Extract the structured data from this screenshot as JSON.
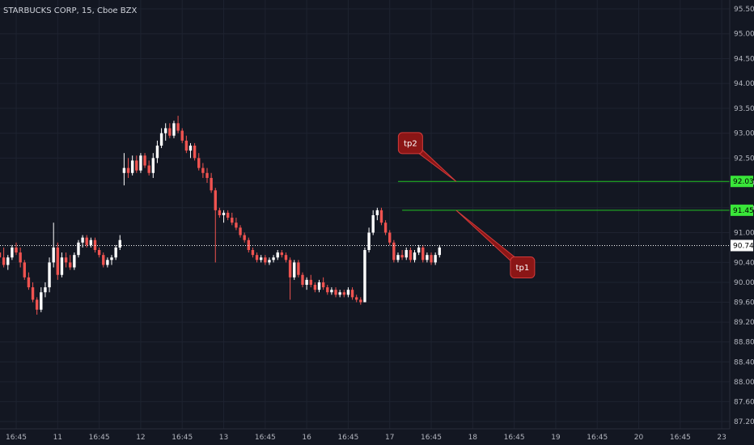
{
  "chart_data": {
    "type": "candlestick",
    "title": "STARBUCKS CORP, 15, Cboe BZX",
    "colors": {
      "up": "#ffffff",
      "down": "#ef5350",
      "background": "#131722",
      "target_line": "#22c322",
      "target_badge": "#39e639",
      "price_line": "#ffffff",
      "callout": "#8b1616",
      "callout_border": "#d33a3a"
    },
    "y_axis": {
      "min": 87.2,
      "max": 95.5,
      "ticks": [
        "95.50",
        "95.00",
        "94.50",
        "94.00",
        "93.50",
        "93.00",
        "92.50",
        "92.00",
        "91.50",
        "91.00",
        "90.40",
        "90.00",
        "89.60",
        "89.20",
        "88.80",
        "88.40",
        "88.00",
        "87.60",
        "87.20"
      ],
      "position": "right"
    },
    "x_axis": {
      "ticks": [
        {
          "label": "16:45",
          "bar": 4
        },
        {
          "label": "11",
          "bar": 14
        },
        {
          "label": "16:45",
          "bar": 24
        },
        {
          "label": "12",
          "bar": 34
        },
        {
          "label": "16:45",
          "bar": 44
        },
        {
          "label": "13",
          "bar": 54
        },
        {
          "label": "16:45",
          "bar": 64
        },
        {
          "label": "16",
          "bar": 74
        },
        {
          "label": "16:45",
          "bar": 84
        },
        {
          "label": "17",
          "bar": 94
        },
        {
          "label": "16:45",
          "bar": 104
        },
        {
          "label": "18",
          "bar": 114
        },
        {
          "label": "16:45",
          "bar": 124
        },
        {
          "label": "19",
          "bar": 134
        },
        {
          "label": "16:45",
          "bar": 144
        },
        {
          "label": "20",
          "bar": 154
        },
        {
          "label": "16:45",
          "bar": 164
        },
        {
          "label": "23",
          "bar": 174
        }
      ]
    },
    "candles": [
      [
        90.6,
        90.8,
        90.45,
        90.5
      ],
      [
        90.5,
        90.7,
        90.3,
        90.35
      ],
      [
        90.35,
        90.55,
        90.25,
        90.5
      ],
      [
        90.5,
        90.75,
        90.45,
        90.7
      ],
      [
        90.7,
        90.8,
        90.55,
        90.6
      ],
      [
        90.6,
        90.7,
        90.3,
        90.4
      ],
      [
        90.4,
        90.45,
        90.05,
        90.1
      ],
      [
        90.1,
        90.2,
        89.85,
        89.9
      ],
      [
        89.9,
        90.0,
        89.6,
        89.65
      ],
      [
        89.65,
        89.7,
        89.35,
        89.45
      ],
      [
        89.45,
        89.9,
        89.4,
        89.8
      ],
      [
        89.8,
        90.0,
        89.7,
        89.9
      ],
      [
        89.9,
        90.5,
        89.8,
        90.4
      ],
      [
        90.4,
        91.2,
        90.3,
        90.7
      ],
      [
        90.7,
        90.8,
        90.05,
        90.15
      ],
      [
        90.15,
        90.6,
        90.1,
        90.5
      ],
      [
        90.5,
        90.6,
        90.3,
        90.4
      ],
      [
        90.4,
        90.55,
        90.25,
        90.3
      ],
      [
        90.3,
        90.6,
        90.25,
        90.55
      ],
      [
        90.55,
        90.85,
        90.5,
        90.8
      ],
      [
        90.8,
        90.95,
        90.7,
        90.9
      ],
      [
        90.9,
        90.95,
        90.7,
        90.75
      ],
      [
        90.75,
        90.9,
        90.7,
        90.85
      ],
      [
        90.85,
        90.9,
        90.6,
        90.65
      ],
      [
        90.65,
        90.7,
        90.5,
        90.55
      ],
      [
        90.55,
        90.6,
        90.3,
        90.35
      ],
      [
        90.35,
        90.5,
        90.3,
        90.45
      ],
      [
        90.45,
        90.55,
        90.35,
        90.5
      ],
      [
        90.5,
        90.75,
        90.45,
        90.7
      ],
      [
        90.7,
        90.95,
        90.65,
        90.85
      ],
      [
        92.2,
        92.6,
        91.95,
        92.3
      ],
      [
        92.3,
        92.5,
        92.1,
        92.2
      ],
      [
        92.2,
        92.55,
        92.15,
        92.45
      ],
      [
        92.45,
        92.55,
        92.2,
        92.25
      ],
      [
        92.25,
        92.6,
        92.2,
        92.55
      ],
      [
        92.55,
        92.6,
        92.3,
        92.35
      ],
      [
        92.35,
        92.45,
        92.15,
        92.2
      ],
      [
        92.2,
        92.6,
        92.1,
        92.5
      ],
      [
        92.5,
        92.85,
        92.4,
        92.75
      ],
      [
        92.75,
        93.1,
        92.7,
        93.0
      ],
      [
        93.0,
        93.2,
        92.85,
        93.1
      ],
      [
        93.1,
        93.2,
        92.9,
        92.95
      ],
      [
        92.95,
        93.25,
        92.9,
        93.2
      ],
      [
        93.2,
        93.35,
        93.0,
        93.05
      ],
      [
        93.05,
        93.1,
        92.8,
        92.85
      ],
      [
        92.85,
        92.95,
        92.6,
        92.65
      ],
      [
        92.65,
        92.8,
        92.5,
        92.75
      ],
      [
        92.75,
        92.8,
        92.45,
        92.5
      ],
      [
        92.5,
        92.6,
        92.25,
        92.3
      ],
      [
        92.3,
        92.4,
        92.1,
        92.2
      ],
      [
        92.2,
        92.3,
        92.0,
        92.1
      ],
      [
        92.1,
        92.2,
        91.8,
        91.85
      ],
      [
        91.85,
        91.9,
        90.4,
        91.45
      ],
      [
        91.45,
        91.5,
        91.3,
        91.35
      ],
      [
        91.35,
        91.45,
        91.2,
        91.4
      ],
      [
        91.4,
        91.45,
        91.25,
        91.3
      ],
      [
        91.3,
        91.4,
        91.15,
        91.2
      ],
      [
        91.2,
        91.3,
        91.05,
        91.1
      ],
      [
        91.1,
        91.15,
        90.9,
        90.95
      ],
      [
        90.95,
        91.0,
        90.8,
        90.85
      ],
      [
        90.85,
        90.9,
        90.6,
        90.65
      ],
      [
        90.65,
        90.7,
        90.5,
        90.55
      ],
      [
        90.55,
        90.6,
        90.4,
        90.45
      ],
      [
        90.45,
        90.55,
        90.4,
        90.5
      ],
      [
        90.5,
        90.55,
        90.35,
        90.4
      ],
      [
        90.4,
        90.5,
        90.35,
        90.45
      ],
      [
        90.45,
        90.55,
        90.4,
        90.5
      ],
      [
        90.5,
        90.65,
        90.45,
        90.6
      ],
      [
        90.6,
        90.65,
        90.5,
        90.55
      ],
      [
        90.55,
        90.6,
        90.4,
        90.45
      ],
      [
        90.45,
        90.5,
        89.65,
        90.1
      ],
      [
        90.1,
        90.45,
        90.05,
        90.4
      ],
      [
        90.4,
        90.45,
        90.1,
        90.15
      ],
      [
        90.15,
        90.2,
        89.9,
        89.95
      ],
      [
        89.95,
        90.1,
        89.85,
        90.05
      ],
      [
        90.05,
        90.15,
        89.9,
        89.95
      ],
      [
        89.95,
        90.0,
        89.8,
        89.85
      ],
      [
        89.85,
        90.05,
        89.8,
        90.0
      ],
      [
        90.0,
        90.1,
        89.85,
        89.9
      ],
      [
        89.9,
        89.95,
        89.75,
        89.8
      ],
      [
        89.8,
        89.9,
        89.75,
        89.85
      ],
      [
        89.85,
        89.9,
        89.7,
        89.75
      ],
      [
        89.75,
        89.85,
        89.7,
        89.8
      ],
      [
        89.8,
        89.85,
        89.7,
        89.75
      ],
      [
        89.75,
        89.9,
        89.7,
        89.85
      ],
      [
        89.85,
        89.9,
        89.65,
        89.7
      ],
      [
        89.7,
        89.75,
        89.6,
        89.65
      ],
      [
        89.65,
        89.7,
        89.55,
        89.6
      ],
      [
        89.6,
        90.7,
        89.6,
        90.65
      ],
      [
        90.65,
        91.1,
        90.6,
        91.0
      ],
      [
        91.0,
        91.45,
        90.95,
        91.35
      ],
      [
        91.35,
        91.5,
        91.25,
        91.45
      ],
      [
        91.45,
        91.5,
        91.15,
        91.2
      ],
      [
        91.2,
        91.25,
        90.95,
        91.0
      ],
      [
        91.0,
        91.05,
        90.75,
        90.8
      ],
      [
        90.8,
        90.85,
        90.4,
        90.45
      ],
      [
        90.45,
        90.6,
        90.4,
        90.55
      ],
      [
        90.55,
        90.65,
        90.45,
        90.5
      ],
      [
        90.5,
        90.7,
        90.45,
        90.65
      ],
      [
        90.65,
        90.7,
        90.4,
        90.45
      ],
      [
        90.45,
        90.65,
        90.4,
        90.6
      ],
      [
        90.6,
        90.75,
        90.55,
        90.7
      ],
      [
        90.7,
        90.75,
        90.4,
        90.45
      ],
      [
        90.45,
        90.6,
        90.4,
        90.55
      ],
      [
        90.55,
        90.6,
        90.35,
        90.4
      ],
      [
        90.4,
        90.6,
        90.35,
        90.55
      ],
      [
        90.55,
        90.75,
        90.5,
        90.7
      ]
    ],
    "current_price": "90.74",
    "target_lines": [
      {
        "label": "92.03",
        "value": 92.03,
        "start_bar": 96
      },
      {
        "label": "91.45",
        "value": 91.45,
        "start_bar": 97
      }
    ],
    "annotations": [
      {
        "text": "tp2",
        "value": 92.8,
        "bar": 99,
        "pointer_bar": 110,
        "pointer_value": 92.03
      },
      {
        "text": "tp1",
        "value": 90.3,
        "bar": 126,
        "pointer_bar": 110,
        "pointer_value": 91.45
      }
    ]
  }
}
